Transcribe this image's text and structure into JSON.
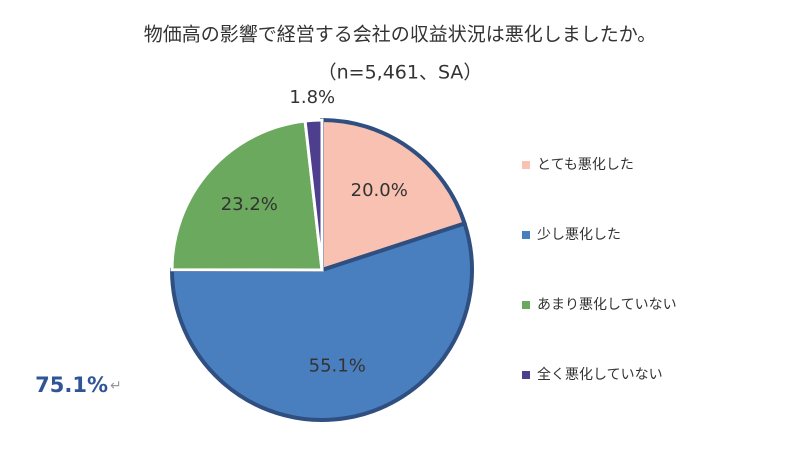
{
  "chart_data": {
    "type": "pie",
    "title": "物価高の影響で経営する会社の収益状況は悪化しましたか。",
    "subtitle": "（n=5,461、SA）",
    "categories": [
      "とても悪化した",
      "少し悪化した",
      "あまり悪化していない",
      "全く悪化していない"
    ],
    "values": [
      20.0,
      55.1,
      23.2,
      1.8
    ],
    "value_labels": [
      "20.0%",
      "55.1%",
      "23.2%",
      "1.8%"
    ],
    "colors": [
      "#f8c1b1",
      "#4a7fbf",
      "#6aa95e",
      "#4d3e8e"
    ],
    "highlight": [
      0,
      1
    ],
    "highlight_color": "#2f4f80",
    "annotation": "75.1%",
    "annotation_mark": "↵",
    "legend": "right"
  }
}
